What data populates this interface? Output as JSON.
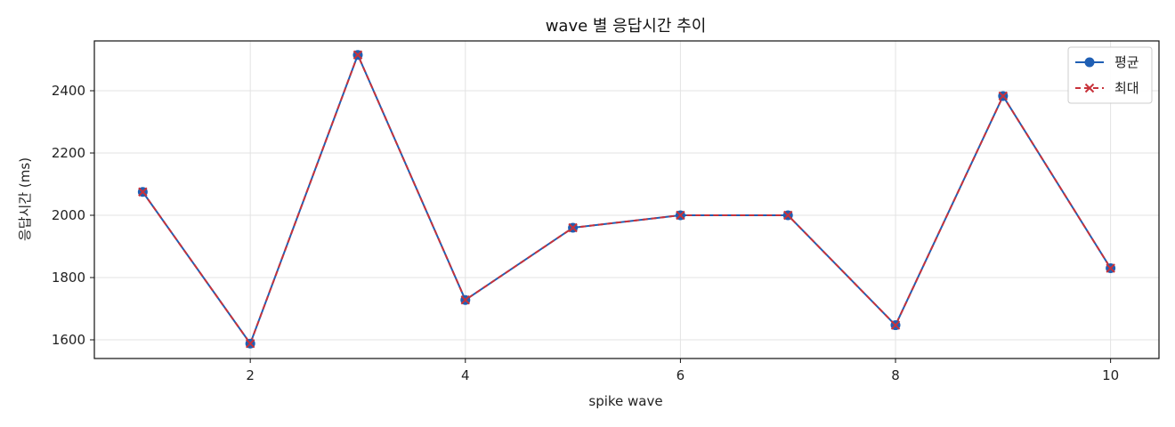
{
  "chart_data": {
    "type": "line",
    "title": "wave 별 응답시간 추이",
    "xlabel": "spike wave",
    "ylabel": "응답시간 (ms)",
    "x": [
      1,
      2,
      3,
      4,
      5,
      6,
      7,
      8,
      9,
      10
    ],
    "xlim": [
      0.55,
      10.45
    ],
    "ylim": [
      1540,
      2560
    ],
    "xticks": [
      2,
      4,
      6,
      8,
      10
    ],
    "yticks": [
      1600,
      1800,
      2000,
      2200,
      2400
    ],
    "grid": true,
    "legend_position": "top-right",
    "series": [
      {
        "name": "평균",
        "color": "#1f5fb4",
        "marker": "circle",
        "line_style": "solid",
        "values": [
          2075,
          1588,
          2515,
          1728,
          1960,
          2000,
          2000,
          1647,
          2383,
          1830
        ]
      },
      {
        "name": "최대",
        "color": "#c8323a",
        "marker": "x",
        "line_style": "dashed",
        "values": [
          2075,
          1588,
          2515,
          1728,
          1960,
          2000,
          2000,
          1647,
          2383,
          1830
        ]
      }
    ]
  }
}
